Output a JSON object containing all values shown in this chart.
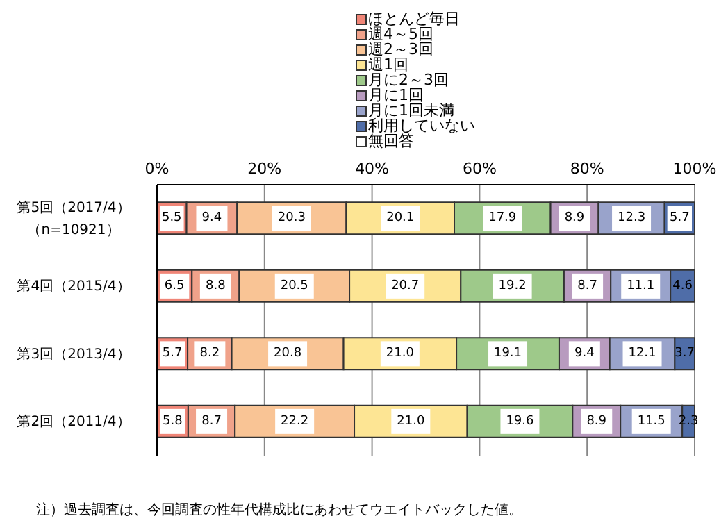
{
  "chart_data": {
    "type": "bar",
    "orientation": "horizontal",
    "stacked": true,
    "categories": [
      "第5回（2017/4）（n=10921）",
      "第4回（2015/4）",
      "第3回（2013/4）",
      "第2回（2011/4）"
    ],
    "series": [
      {
        "name": "ほとんど毎日",
        "color": "#f08577",
        "values": [
          5.5,
          6.5,
          5.7,
          5.8
        ],
        "value_labels": [
          "5.5",
          "6.5",
          "5.7",
          "5.8"
        ]
      },
      {
        "name": "週4～5回",
        "color": "#f0a28a",
        "values": [
          9.4,
          8.8,
          8.2,
          8.7
        ],
        "value_labels": [
          "9.4",
          "8.8",
          "8.2",
          "8.7"
        ]
      },
      {
        "name": "週2～3回",
        "color": "#f9c495",
        "values": [
          20.3,
          20.5,
          20.8,
          22.2
        ],
        "value_labels": [
          "20.3",
          "20.5",
          "20.8",
          "22.2"
        ]
      },
      {
        "name": "週1回",
        "color": "#fde594",
        "values": [
          20.1,
          20.7,
          21.0,
          21.0
        ],
        "value_labels": [
          "20.1",
          "20.7",
          "21.0",
          "21.0"
        ]
      },
      {
        "name": "月に2～3回",
        "color": "#9ec98a",
        "values": [
          17.9,
          19.2,
          19.1,
          19.6
        ],
        "value_labels": [
          "17.9",
          "19.2",
          "19.1",
          "19.6"
        ]
      },
      {
        "name": "月に1回",
        "color": "#b89bbf",
        "values": [
          8.9,
          8.7,
          9.4,
          8.9
        ],
        "value_labels": [
          "8.9",
          "8.7",
          "9.4",
          "8.9"
        ]
      },
      {
        "name": "月に1回未満",
        "color": "#99a3cb",
        "values": [
          12.3,
          11.1,
          12.1,
          11.5
        ],
        "value_labels": [
          "12.3",
          "11.1",
          "12.1",
          "11.5"
        ]
      },
      {
        "name": "利用していない",
        "color": "#4f6da8",
        "values": [
          5.7,
          4.6,
          3.7,
          2.3
        ],
        "value_labels": [
          "5.7",
          "4.6",
          "3.7",
          "2.3"
        ]
      },
      {
        "name": "無回答",
        "color": "#ffffff",
        "values": [
          0,
          0,
          0,
          0
        ],
        "value_labels": [
          null,
          null,
          null,
          null
        ]
      }
    ],
    "xlim": [
      0,
      100
    ],
    "xticks": [
      {
        "value": 0,
        "label": "0%"
      },
      {
        "value": 20,
        "label": "20%"
      },
      {
        "value": 40,
        "label": "40%"
      },
      {
        "value": 60,
        "label": "60%"
      },
      {
        "value": 80,
        "label": "80%"
      },
      {
        "value": 100,
        "label": "100%"
      }
    ],
    "grid": "x",
    "legend": "top",
    "annotations": [
      "注）過去調査は、今回調査の性年代構成比にあわせてウエイトバックした値。"
    ]
  }
}
